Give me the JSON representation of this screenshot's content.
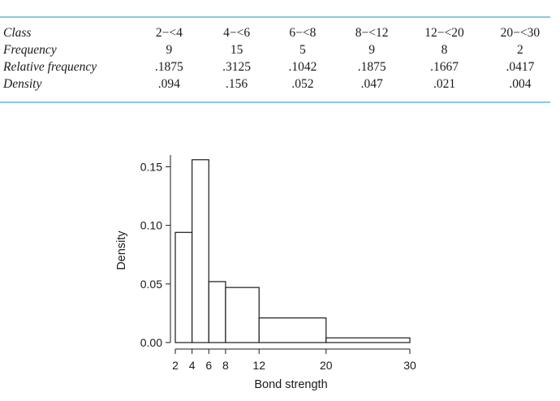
{
  "table": {
    "rows": [
      {
        "label": "Class",
        "cells": [
          "2−<4",
          "4−<6",
          "6−<8",
          "8−<12",
          "12−<20",
          "20−<30"
        ]
      },
      {
        "label": "Frequency",
        "cells": [
          "9",
          "15",
          "5",
          "9",
          "8",
          "2"
        ]
      },
      {
        "label": "Relative frequency",
        "cells": [
          ".1875",
          ".3125",
          ".1042",
          ".1875",
          ".1667",
          ".0417"
        ]
      },
      {
        "label": "Density",
        "cells": [
          ".094",
          ".156",
          ".052",
          ".047",
          ".021",
          ".004"
        ]
      }
    ],
    "rule_color": "#8cc8e0"
  },
  "chart_data": {
    "type": "bar",
    "subtype": "histogram",
    "xlabel": "Bond strength",
    "ylabel": "Density",
    "bins": [
      {
        "start": 2,
        "end": 4,
        "density": 0.094
      },
      {
        "start": 4,
        "end": 6,
        "density": 0.156
      },
      {
        "start": 6,
        "end": 8,
        "density": 0.052
      },
      {
        "start": 8,
        "end": 12,
        "density": 0.047
      },
      {
        "start": 12,
        "end": 20,
        "density": 0.021
      },
      {
        "start": 20,
        "end": 30,
        "density": 0.004
      }
    ],
    "xticks": [
      2,
      4,
      6,
      8,
      12,
      20,
      30
    ],
    "yticks": [
      "0.00",
      "0.05",
      "0.10",
      "0.15"
    ],
    "xlim": [
      2,
      30
    ],
    "ylim": [
      0,
      0.16
    ],
    "grid": false,
    "bar_fill": "#ffffff",
    "bar_stroke": "#1a1a1a"
  }
}
